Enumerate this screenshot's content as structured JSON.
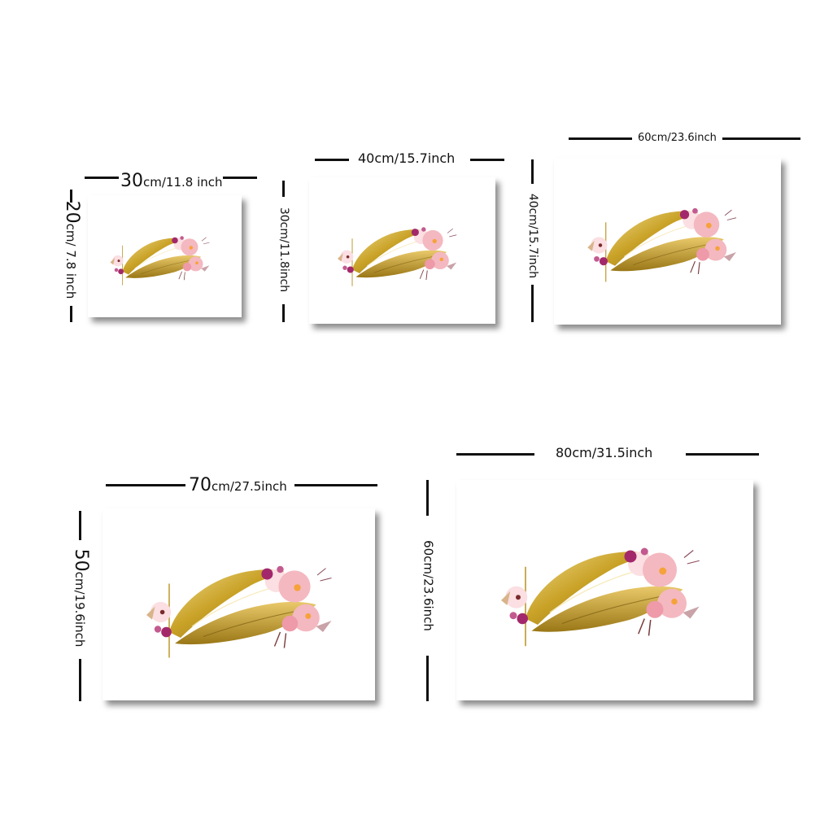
{
  "products": [
    {
      "width_value": "30",
      "width_unit": "cm/11.8 inch",
      "height_value": "20",
      "height_unit": "cm/ 7.8 inch"
    },
    {
      "width_label": "40cm/15.7inch",
      "height_label": "30cm/11.8inch"
    },
    {
      "width_label": "60cm/23.6inch",
      "height_label": "40cm/15.7inch"
    },
    {
      "width_value": "70",
      "width_unit": "cm/27.5inch",
      "height_value": "50",
      "height_unit": "cm/19.6inch"
    },
    {
      "width_label": "80cm/31.5inch",
      "height_label": "60cm/23.6inch"
    }
  ],
  "artwork": {
    "subject": "gold lips with watercolor flowers",
    "colors": {
      "gold": "#c9a227",
      "gold_dark": "#8a6b12",
      "gold_light": "#f1dc8e",
      "pink": "#f4b8c0",
      "pale_pink": "#fbdfe2",
      "magenta": "#a3286b",
      "orange": "#f6a23a"
    }
  }
}
